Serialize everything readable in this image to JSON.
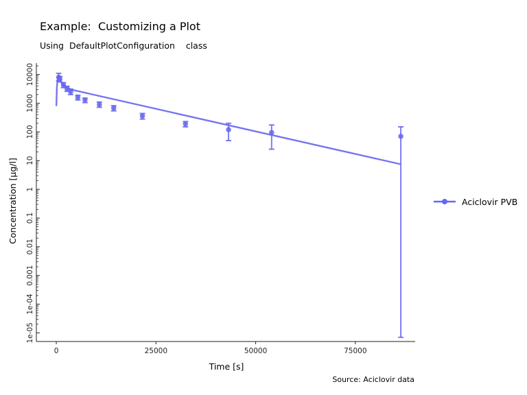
{
  "chart_data": {
    "type": "line",
    "title": "Example:  Customizing a Plot",
    "subtitle": "Using  DefaultPlotConfiguration    class",
    "caption": "Source: Aciclovir data",
    "xlabel": "Time [s]",
    "ylabel": "Concentration  [µg/l]",
    "xlim": [
      -5000,
      90000
    ],
    "ylim": [
      5e-06,
      25000
    ],
    "yscale": "log",
    "x_ticks": [
      0,
      25000,
      50000,
      75000
    ],
    "x_tick_labels": [
      "0",
      "25000",
      "50000",
      "75000"
    ],
    "y_ticks": [
      1e-05,
      0.0001,
      0.001,
      0.01,
      0.1,
      1,
      10,
      100,
      1000,
      10000
    ],
    "y_tick_labels": [
      "1e-05",
      "1e-04",
      "0.001",
      "0.01",
      "0.1",
      "1",
      "10",
      "100",
      "1000",
      "10000"
    ],
    "grid": false,
    "legend": "right",
    "color": "#6666f0",
    "simulated": {
      "name": "Aciclovir PVB",
      "x": [
        0,
        150,
        300,
        480,
        600,
        900,
        1500,
        3600,
        86400
      ],
      "y": [
        800,
        3500,
        6500,
        9000,
        9500,
        7000,
        4500,
        3000,
        7.5
      ]
    },
    "observed": {
      "x": [
        600,
        900,
        1800,
        2700,
        3600,
        5400,
        7200,
        10800,
        14400,
        21600,
        32400,
        43200,
        54000,
        86400
      ],
      "y": [
        8000,
        7000,
        4300,
        3200,
        2500,
        1600,
        1300,
        900,
        680,
        360,
        190,
        120,
        95,
        70
      ],
      "y_lower": [
        6000,
        5500,
        3500,
        2600,
        2000,
        1300,
        1050,
        720,
        540,
        280,
        150,
        50,
        25,
        7e-06
      ],
      "y_upper": [
        11000,
        8500,
        5200,
        3900,
        3100,
        1900,
        1500,
        1100,
        820,
        440,
        230,
        200,
        175,
        150
      ]
    },
    "legend_entries": [
      "Aciclovir PVB"
    ]
  }
}
